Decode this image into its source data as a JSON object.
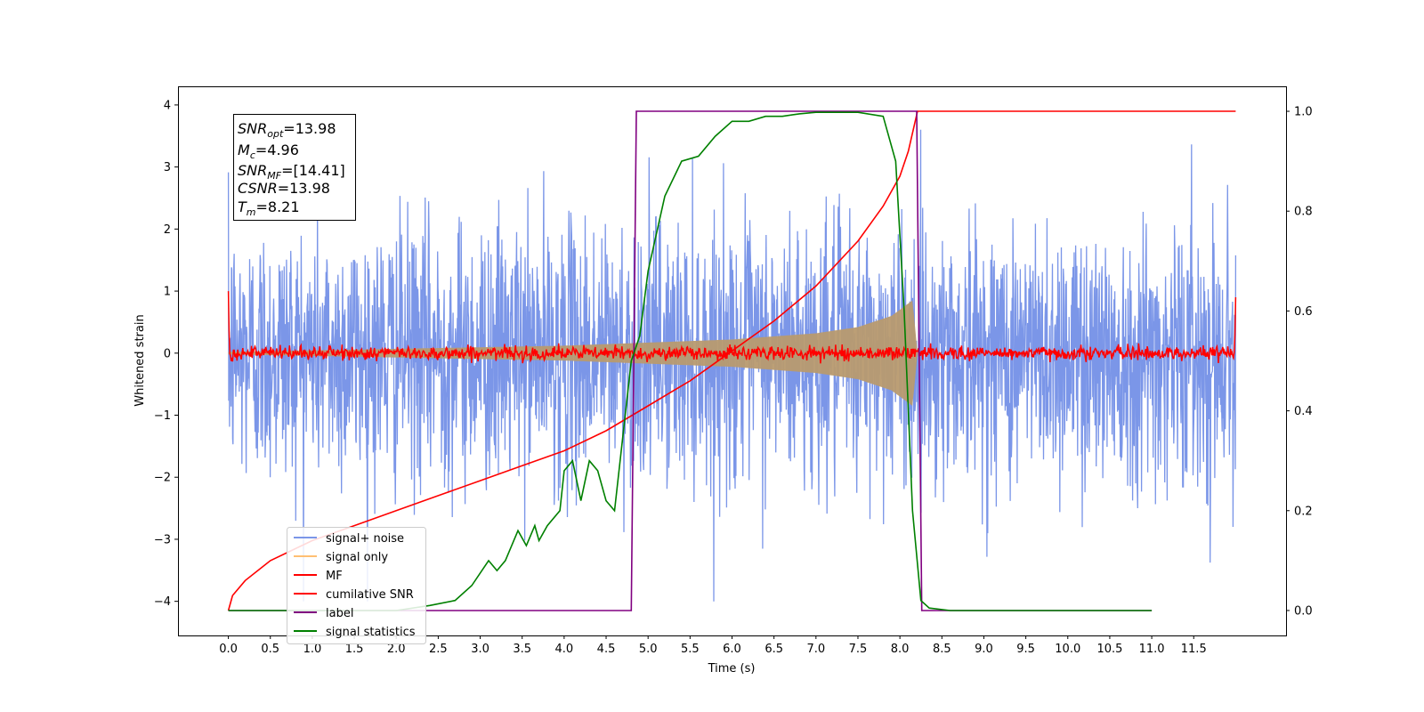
{
  "chart_data": {
    "type": "line",
    "xlabel": "Time (s)",
    "ylabel": "Whitened strain",
    "xlim": [
      -0.6,
      12.6
    ],
    "ylim": [
      -4.55,
      4.3
    ],
    "ylim_right": [
      -0.05,
      1.05
    ],
    "xticks": [
      "0.0",
      "0.5",
      "1.0",
      "1.5",
      "2.0",
      "2.5",
      "3.0",
      "3.5",
      "4.0",
      "4.5",
      "5.0",
      "5.5",
      "6.0",
      "6.5",
      "7.0",
      "7.5",
      "8.0",
      "8.5",
      "9.0",
      "9.5",
      "10.0",
      "10.5",
      "11.0",
      "11.5"
    ],
    "yticks": [
      "−4",
      "−3",
      "−2",
      "−1",
      "0",
      "1",
      "2",
      "3",
      "4"
    ],
    "yticks_right": [
      "0.0",
      "0.2",
      "0.4",
      "0.6",
      "0.8",
      "1.0"
    ],
    "annotation": {
      "snr_opt": "=13.98",
      "mc": "=4.96",
      "snr_mf": "=[14.41]",
      "csnr": "=13.98",
      "tm": "=8.21"
    },
    "series": [
      {
        "name": "signal+ noise",
        "color": "#7b96e8",
        "axis": "left",
        "kind": "noise",
        "x_range": [
          0.0,
          12.0
        ],
        "approx_amplitude_sigma": 1.0,
        "envelope_peak": 4.0
      },
      {
        "name": "signal only",
        "color": "#ffbf73",
        "axis": "left",
        "kind": "chirp",
        "x_range": [
          0.0,
          8.21
        ],
        "envelope": [
          [
            0.0,
            0.02
          ],
          [
            4.0,
            0.12
          ],
          [
            6.0,
            0.22
          ],
          [
            7.0,
            0.32
          ],
          [
            7.5,
            0.42
          ],
          [
            7.9,
            0.6
          ],
          [
            8.15,
            0.85
          ],
          [
            8.21,
            0.0
          ]
        ]
      },
      {
        "name": "MF",
        "color": "#ff0000",
        "axis": "left",
        "kind": "mf",
        "x_range": [
          0.0,
          12.0
        ],
        "start_value": 1.0,
        "end_value": 0.9
      },
      {
        "name": "cumilative SNR",
        "color": "#ff0000",
        "axis": "right",
        "kind": "line",
        "x": [
          0.0,
          0.05,
          0.2,
          0.5,
          1.0,
          1.5,
          2.0,
          2.5,
          3.0,
          3.5,
          4.0,
          4.5,
          5.0,
          5.5,
          6.0,
          6.5,
          7.0,
          7.5,
          7.8,
          8.0,
          8.1,
          8.21,
          12.0
        ],
        "y": [
          0.0,
          0.03,
          0.06,
          0.1,
          0.14,
          0.17,
          0.2,
          0.23,
          0.26,
          0.29,
          0.32,
          0.36,
          0.41,
          0.46,
          0.52,
          0.58,
          0.65,
          0.74,
          0.81,
          0.87,
          0.92,
          1.0,
          1.0
        ]
      },
      {
        "name": "label",
        "color": "#800080",
        "axis": "right",
        "kind": "line",
        "x": [
          0.0,
          4.8,
          4.86,
          8.2,
          8.26,
          11.0
        ],
        "y": [
          0.0,
          0.0,
          1.0,
          1.0,
          0.0,
          0.0
        ]
      },
      {
        "name": "signal statistics",
        "color": "#008000",
        "axis": "right",
        "kind": "line",
        "x": [
          0.0,
          1.0,
          2.0,
          2.4,
          2.7,
          2.9,
          3.1,
          3.2,
          3.3,
          3.45,
          3.55,
          3.65,
          3.7,
          3.8,
          3.95,
          4.0,
          4.1,
          4.2,
          4.3,
          4.4,
          4.5,
          4.6,
          4.7,
          4.8,
          4.9,
          5.0,
          5.2,
          5.4,
          5.6,
          5.8,
          6.0,
          6.2,
          6.4,
          6.6,
          6.8,
          7.0,
          7.5,
          7.8,
          7.95,
          8.05,
          8.15,
          8.25,
          8.35,
          8.6,
          11.0
        ],
        "y": [
          0.0,
          0.0,
          0.0,
          0.01,
          0.02,
          0.05,
          0.1,
          0.08,
          0.1,
          0.16,
          0.13,
          0.17,
          0.14,
          0.17,
          0.2,
          0.28,
          0.3,
          0.22,
          0.3,
          0.28,
          0.22,
          0.2,
          0.35,
          0.5,
          0.55,
          0.68,
          0.83,
          0.9,
          0.91,
          0.95,
          0.98,
          0.98,
          0.99,
          0.99,
          0.995,
          0.998,
          0.998,
          0.99,
          0.9,
          0.6,
          0.2,
          0.02,
          0.005,
          0.0,
          0.0
        ]
      }
    ]
  }
}
